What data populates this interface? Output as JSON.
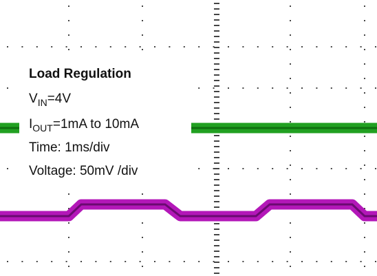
{
  "title": "Load Regulation",
  "lines": [
    {
      "main": "V",
      "sub": "IN",
      "rest": "=4V"
    },
    {
      "main": "I",
      "sub": "OUT",
      "rest": "=1mA to 10mA"
    },
    {
      "main": "Time: 1ms/div"
    },
    {
      "main": "Voltage: 50mV /div"
    }
  ]
}
